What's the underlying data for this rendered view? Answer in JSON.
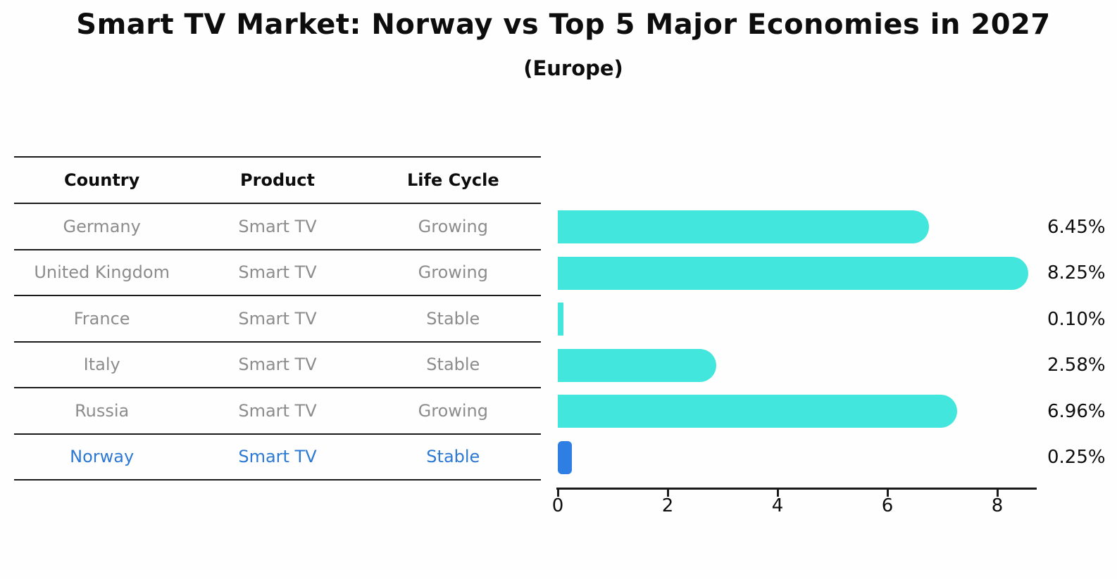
{
  "title": "Smart TV Market: Norway vs Top 5 Major Economies in 2027",
  "subtitle": "(Europe)",
  "table": {
    "headers": {
      "country": "Country",
      "product": "Product",
      "life_cycle": "Life Cycle"
    },
    "rows": [
      {
        "country": "Germany",
        "product": "Smart TV",
        "life_cycle": "Growing"
      },
      {
        "country": "United Kingdom",
        "product": "Smart TV",
        "life_cycle": "Growing"
      },
      {
        "country": "France",
        "product": "Smart TV",
        "life_cycle": "Stable"
      },
      {
        "country": "Italy",
        "product": "Smart TV",
        "life_cycle": "Stable"
      },
      {
        "country": "Russia",
        "product": "Smart TV",
        "life_cycle": "Growing"
      },
      {
        "country": "Norway",
        "product": "Smart TV",
        "life_cycle": "Stable"
      }
    ],
    "highlight_row": "Norway"
  },
  "chart_data": {
    "type": "bar",
    "orientation": "horizontal",
    "title": "Smart TV Market: Norway vs Top 5 Major Economies in 2027",
    "subtitle": "(Europe)",
    "categories": [
      "Germany",
      "United Kingdom",
      "France",
      "Italy",
      "Russia",
      "Norway"
    ],
    "values": [
      6.45,
      8.25,
      0.1,
      2.58,
      6.96,
      0.25
    ],
    "value_labels": [
      "6.45%",
      "8.25%",
      "0.10%",
      "2.58%",
      "6.96%",
      "0.25%"
    ],
    "x_ticks": [
      0,
      2,
      4,
      6,
      8
    ],
    "xlim": [
      0,
      8.75
    ],
    "grid": false,
    "legend": null,
    "highlight_index": 5
  },
  "colors": {
    "bar": "#43e6dd",
    "highlight_bar": "#2e7ee4",
    "highlight_text": "#2b79d2",
    "table_text": "#8c8c8c",
    "header_text": "#0d0d0d",
    "axis": "#1a1a1a"
  }
}
